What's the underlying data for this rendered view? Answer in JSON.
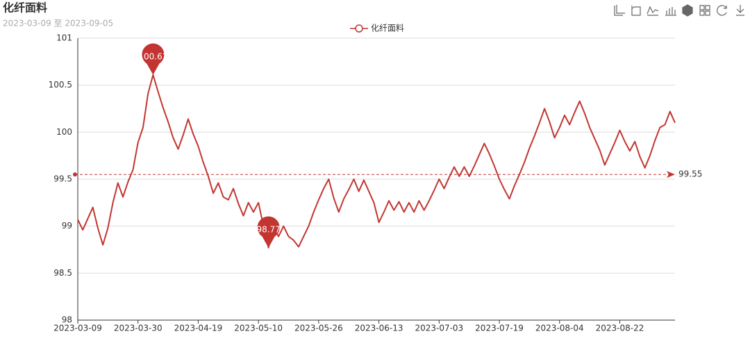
{
  "chart_data": {
    "type": "line",
    "title": "化纤面料",
    "subtitle": "2023-03-09 至 2023-09-05",
    "categories": [
      "2023-03-09",
      null,
      null,
      null,
      null,
      null,
      null,
      null,
      null,
      null,
      null,
      null,
      "2023-03-30",
      null,
      null,
      null,
      null,
      null,
      null,
      null,
      null,
      null,
      null,
      null,
      "2023-04-19",
      null,
      null,
      null,
      null,
      null,
      null,
      null,
      null,
      null,
      null,
      null,
      "2023-05-10",
      null,
      null,
      null,
      null,
      null,
      null,
      null,
      null,
      null,
      null,
      null,
      "2023-05-26",
      null,
      null,
      null,
      null,
      null,
      null,
      null,
      null,
      null,
      null,
      null,
      "2023-06-13",
      null,
      null,
      null,
      null,
      null,
      null,
      null,
      null,
      null,
      null,
      null,
      "2023-07-03",
      null,
      null,
      null,
      null,
      null,
      null,
      null,
      null,
      null,
      null,
      null,
      "2023-07-19",
      null,
      null,
      null,
      null,
      null,
      null,
      null,
      null,
      null,
      null,
      null,
      "2023-08-04",
      null,
      null,
      null,
      null,
      null,
      null,
      null,
      null,
      null,
      null,
      null,
      "2023-08-22",
      null,
      null,
      null,
      null,
      null,
      null,
      null,
      null,
      null,
      null,
      null
    ],
    "series": [
      {
        "name": "化纤面料",
        "color": "#c23531",
        "values": [
          99.07,
          98.96,
          99.08,
          99.2,
          98.98,
          98.8,
          98.98,
          99.25,
          99.46,
          99.31,
          99.47,
          99.6,
          99.89,
          100.05,
          100.41,
          100.61,
          100.43,
          100.26,
          100.11,
          99.94,
          99.82,
          99.97,
          100.14,
          99.98,
          99.85,
          99.68,
          99.53,
          99.35,
          99.46,
          99.31,
          99.28,
          99.4,
          99.24,
          99.11,
          99.25,
          99.15,
          99.25,
          99.0,
          98.77,
          99.0,
          98.89,
          99.0,
          98.89,
          98.85,
          98.78,
          98.89,
          99.0,
          99.15,
          99.28,
          99.4,
          99.5,
          99.3,
          99.15,
          99.29,
          99.39,
          99.5,
          99.37,
          99.49,
          99.37,
          99.25,
          99.04,
          99.15,
          99.27,
          99.17,
          99.26,
          99.15,
          99.25,
          99.15,
          99.27,
          99.17,
          99.27,
          99.38,
          99.5,
          99.4,
          99.52,
          99.63,
          99.53,
          99.63,
          99.53,
          99.64,
          99.76,
          99.88,
          99.77,
          99.64,
          99.5,
          99.39,
          99.29,
          99.43,
          99.55,
          99.68,
          99.83,
          99.96,
          100.1,
          100.25,
          100.11,
          99.94,
          100.05,
          100.18,
          100.08,
          100.21,
          100.33,
          100.2,
          100.05,
          99.93,
          99.81,
          99.65,
          99.77,
          99.89,
          100.02,
          99.9,
          99.8,
          99.9,
          99.74,
          99.62,
          99.75,
          99.91,
          100.05,
          100.08,
          100.22,
          100.1
        ],
        "mark_points": [
          100.61,
          98.77
        ],
        "mark_line": 99.55
      }
    ],
    "ylim": [
      98,
      101
    ],
    "yticks": [
      98,
      98.5,
      99,
      99.5,
      100,
      100.5,
      101
    ],
    "grid": true
  }
}
